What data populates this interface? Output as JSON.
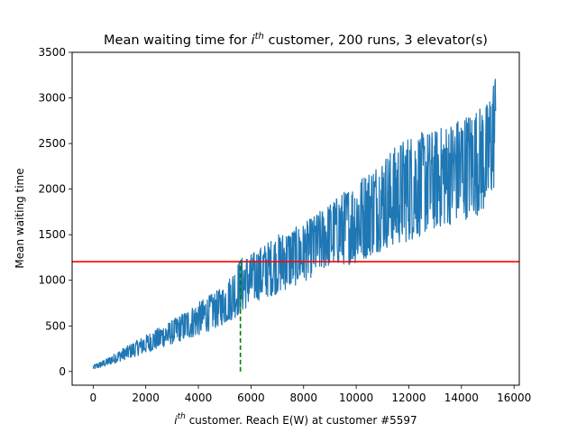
{
  "chart_data": {
    "type": "line",
    "title": {
      "prefix": "Mean waiting time for ",
      "var": "i",
      "sup": "th",
      "suffix": " customer, 200 runs, 3 elevator(s)"
    },
    "xlabel": {
      "var": "i",
      "sup": "th",
      "suffix": " customer. Reach E(W) at customer #5597"
    },
    "ylabel": "Mean waiting time",
    "xlim": [
      -800,
      16200
    ],
    "ylim": [
      -150,
      3500
    ],
    "xticks": [
      0,
      2000,
      4000,
      6000,
      8000,
      10000,
      12000,
      14000,
      16000
    ],
    "yticks": [
      0,
      500,
      1000,
      1500,
      2000,
      2500,
      3000,
      3500
    ],
    "grid": false,
    "series": [
      {
        "color": "#1f77b4",
        "style": "solid",
        "n_points": 15300,
        "envelope": {
          "x": [
            0,
            500,
            1000,
            2000,
            3000,
            4000,
            5000,
            5597,
            6000,
            7000,
            8000,
            9000,
            10000,
            11000,
            12000,
            13000,
            14000,
            15000,
            15300
          ],
          "lower": [
            20,
            60,
            110,
            200,
            300,
            390,
            520,
            620,
            750,
            850,
            980,
            1150,
            1180,
            1330,
            1420,
            1550,
            1650,
            1750,
            2050
          ],
          "upper": [
            70,
            140,
            230,
            400,
            560,
            760,
            940,
            1250,
            1290,
            1500,
            1620,
            1850,
            2090,
            2350,
            2600,
            2650,
            2800,
            2950,
            3330
          ]
        }
      }
    ],
    "reference_lines": [
      {
        "orientation": "horizontal",
        "value": 1205,
        "color": "#ff0000",
        "style": "solid"
      },
      {
        "orientation": "vertical",
        "value": 5597,
        "from": 0,
        "to": 1220,
        "color": "#008000",
        "style": "dashed"
      }
    ]
  }
}
